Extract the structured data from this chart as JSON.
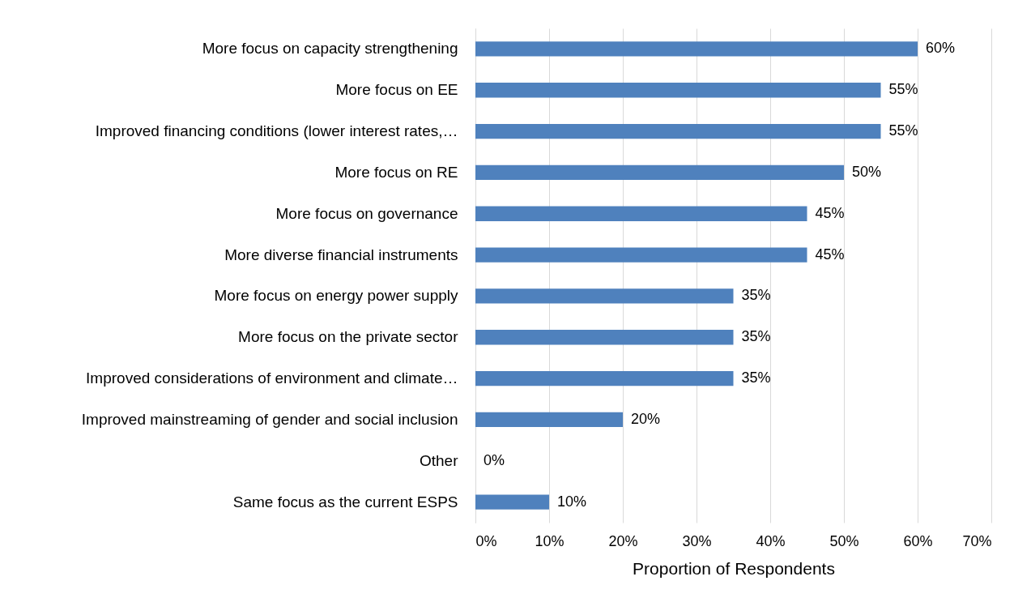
{
  "chart_data": {
    "type": "bar",
    "orientation": "horizontal",
    "xlabel": "Proportion of Respondents",
    "categories": [
      "More focus on capacity strengthening",
      "More focus on EE",
      "Improved financing conditions (lower interest rates,…",
      "More focus on RE",
      "More focus on governance",
      "More diverse financial instruments",
      "More focus on energy power supply",
      "More focus on the private sector",
      "Improved considerations of environment and climate…",
      "Improved mainstreaming of gender and social inclusion",
      "Other",
      "Same focus as the current ESPS"
    ],
    "values": [
      60,
      55,
      55,
      50,
      45,
      45,
      35,
      35,
      35,
      20,
      0,
      10
    ],
    "value_labels": [
      "60%",
      "55%",
      "55%",
      "50%",
      "45%",
      "45%",
      "35%",
      "35%",
      "35%",
      "20%",
      "0%",
      "10%"
    ],
    "color": "#4f81bd",
    "xlim": [
      0,
      70
    ],
    "xticks": [
      {
        "value": 0,
        "label": "0%"
      },
      {
        "value": 10,
        "label": "10%"
      },
      {
        "value": 20,
        "label": "20%"
      },
      {
        "value": 30,
        "label": "30%"
      },
      {
        "value": 40,
        "label": "40%"
      },
      {
        "value": 50,
        "label": "50%"
      },
      {
        "value": 60,
        "label": "60%"
      },
      {
        "value": 70,
        "label": "70%"
      }
    ],
    "grid": "x"
  }
}
